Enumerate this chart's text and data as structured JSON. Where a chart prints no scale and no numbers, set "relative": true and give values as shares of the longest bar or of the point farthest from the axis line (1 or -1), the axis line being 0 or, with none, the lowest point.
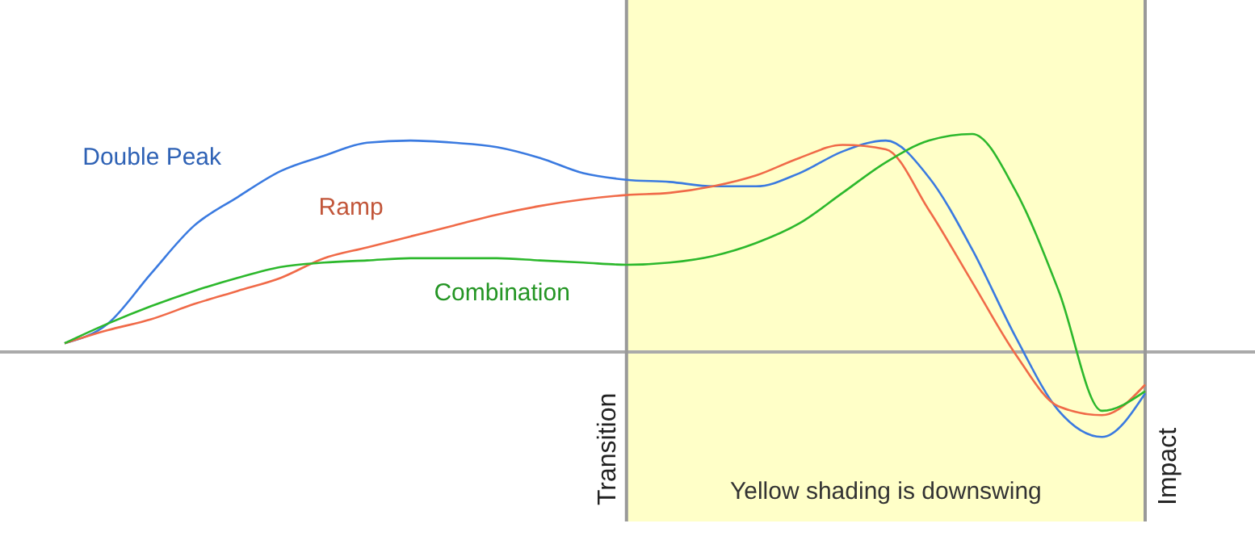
{
  "chart_data": {
    "type": "line",
    "relative": true,
    "categories": [
      null,
      null,
      null,
      null,
      null,
      null,
      null,
      null,
      null,
      null,
      null,
      null,
      null,
      null,
      null,
      null,
      null,
      null,
      null,
      null,
      null,
      null,
      null,
      null,
      null,
      null
    ],
    "series": [
      {
        "name": "Double Peak",
        "color": "#3a7ae0",
        "values": [
          0.04,
          0.13,
          0.36,
          0.58,
          0.71,
          0.83,
          0.9,
          0.96,
          0.97,
          0.96,
          0.94,
          0.89,
          0.82,
          0.79,
          0.78,
          0.76,
          0.76,
          0.82,
          0.92,
          0.97,
          0.8,
          0.47,
          0.07,
          -0.27,
          -0.39,
          -0.19
        ]
      },
      {
        "name": "Ramp",
        "color": "#f06a48",
        "values": [
          0.04,
          0.1,
          0.15,
          0.22,
          0.28,
          0.34,
          0.43,
          0.48,
          0.53,
          0.58,
          0.63,
          0.67,
          0.7,
          0.72,
          0.73,
          0.76,
          0.81,
          0.89,
          0.95,
          0.93,
          0.65,
          0.32,
          -0.01,
          -0.25,
          -0.29,
          -0.15
        ]
      },
      {
        "name": "Combination",
        "color": "#2cb82c",
        "values": [
          0.04,
          0.13,
          0.21,
          0.28,
          0.34,
          0.39,
          0.41,
          0.42,
          0.43,
          0.43,
          0.43,
          0.42,
          0.41,
          0.4,
          0.41,
          0.44,
          0.5,
          0.59,
          0.73,
          0.87,
          0.97,
          1.0,
          0.74,
          0.28,
          -0.27,
          -0.18
        ]
      }
    ],
    "annotations": [
      "Transition",
      "Yellow shading is downswing",
      "Impact"
    ]
  }
}
